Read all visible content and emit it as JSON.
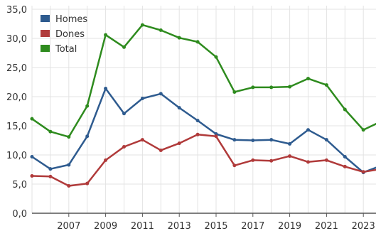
{
  "chart_data": {
    "type": "line",
    "x": [
      2005,
      2006,
      2007,
      2008,
      2009,
      2010,
      2011,
      2012,
      2013,
      2014,
      2015,
      2016,
      2017,
      2018,
      2019,
      2020,
      2021,
      2022,
      2023,
      2024
    ],
    "x_tick_labels": [
      "2007",
      "2009",
      "2011",
      "2013",
      "2015",
      "2017",
      "2019",
      "2021",
      "2023"
    ],
    "y_tick_labels": [
      "0,0",
      "5,0",
      "10,0",
      "15,0",
      "20,0",
      "25,0",
      "30,0",
      "35,0"
    ],
    "ylim": [
      0,
      35
    ],
    "grid": true,
    "legend_position": "top-left",
    "series": [
      {
        "name": "Homes",
        "color": "#2e5b8f",
        "values": [
          9.7,
          7.6,
          8.3,
          13.2,
          21.4,
          17.1,
          19.7,
          20.5,
          18.1,
          15.9,
          13.6,
          12.6,
          12.5,
          12.6,
          11.9,
          14.3,
          12.6,
          9.7,
          7.0,
          8.2
        ]
      },
      {
        "name": "Dones",
        "color": "#b03a3a",
        "values": [
          6.4,
          6.3,
          4.7,
          5.1,
          9.1,
          11.4,
          12.6,
          10.8,
          12.0,
          13.5,
          13.2,
          8.2,
          9.1,
          9.0,
          9.8,
          8.8,
          9.1,
          8.0,
          7.1,
          7.6
        ]
      },
      {
        "name": "Total",
        "color": "#2e8b1e",
        "values": [
          16.2,
          14.0,
          13.1,
          18.4,
          30.6,
          28.5,
          32.3,
          31.4,
          30.1,
          29.4,
          26.8,
          20.8,
          21.6,
          21.6,
          21.7,
          23.1,
          22.0,
          17.8,
          14.3,
          15.8
        ]
      }
    ]
  }
}
